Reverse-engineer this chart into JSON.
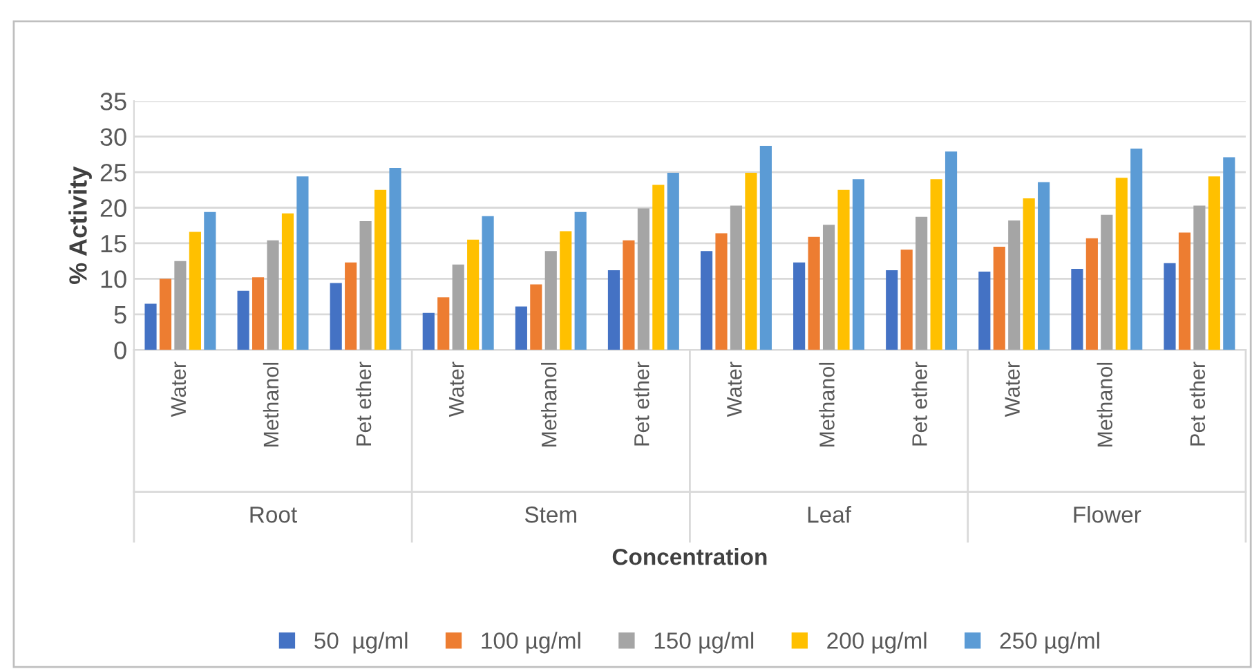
{
  "chart_data": {
    "type": "bar",
    "xlabel": "Concentration",
    "ylabel": "% Activity",
    "categories": [
      "Water",
      "Methanol",
      "Pet ether",
      "Water",
      "Methanol",
      "Pet ether",
      "Water",
      "Methanol",
      "Pet ether",
      "Water",
      "Methanol",
      "Pet ether"
    ],
    "annotations": [
      "Root",
      "Stem",
      "Leaf",
      "Flower"
    ],
    "series": [
      {
        "name": "50  µg/ml",
        "color": "#4472c4",
        "values": [
          6.5,
          8.3,
          9.4,
          5.2,
          6.1,
          11.2,
          13.9,
          12.3,
          11.2,
          11.0,
          11.4,
          12.2
        ]
      },
      {
        "name": "100 µg/ml",
        "color": "#ed7d31",
        "values": [
          10.0,
          10.2,
          12.3,
          7.4,
          9.2,
          15.4,
          16.4,
          15.9,
          14.1,
          14.5,
          15.7,
          16.5
        ]
      },
      {
        "name": "150 µg/ml",
        "color": "#a5a5a5",
        "values": [
          12.5,
          15.4,
          18.1,
          12.0,
          13.9,
          19.9,
          20.3,
          17.6,
          18.7,
          18.2,
          19.0,
          20.3
        ]
      },
      {
        "name": "200 µg/ml",
        "color": "#ffc000",
        "values": [
          16.6,
          19.2,
          22.5,
          15.5,
          16.7,
          23.2,
          24.9,
          22.5,
          24.0,
          21.3,
          24.2,
          24.4
        ]
      },
      {
        "name": "250 µg/ml",
        "color": "#5b9bd5",
        "values": [
          19.4,
          24.4,
          25.6,
          18.8,
          19.4,
          24.9,
          28.7,
          24.0,
          27.9,
          23.6,
          28.3,
          27.1
        ]
      }
    ],
    "ylim": [
      0,
      35
    ],
    "yticks": [
      0,
      5,
      10,
      15,
      20,
      25,
      30,
      35
    ],
    "grid": "y",
    "legend": "bottom"
  }
}
